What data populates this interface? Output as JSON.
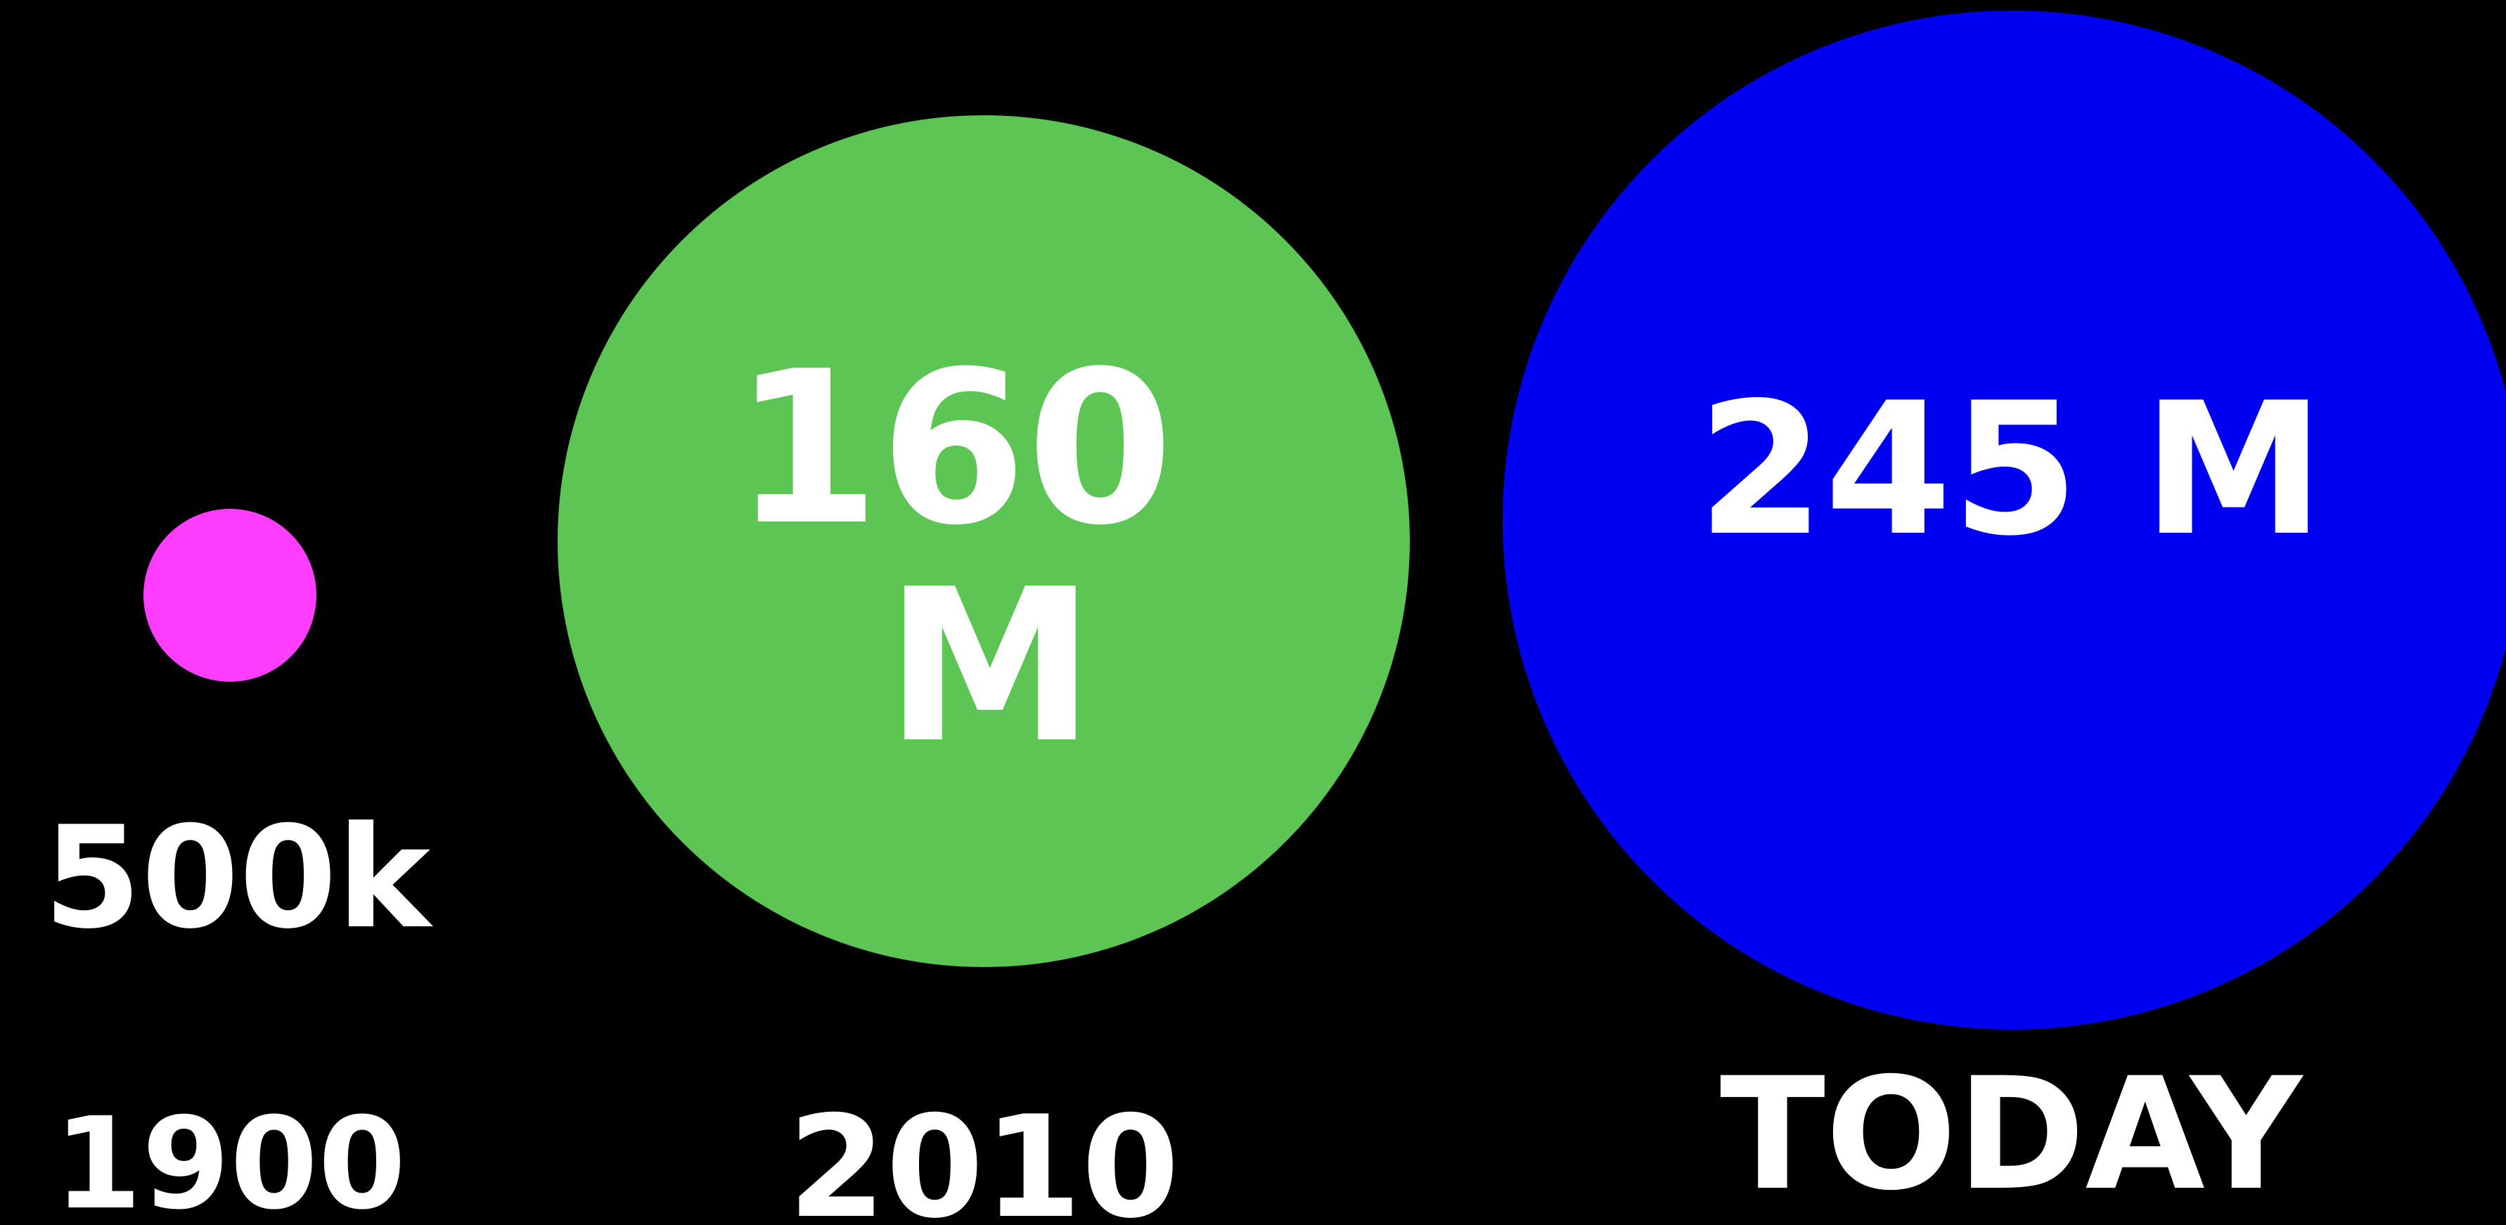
{
  "chart_data": {
    "type": "bubble",
    "categories": [
      "1900",
      "2010",
      "TODAY"
    ],
    "values": [
      500000,
      160000000,
      245000000
    ],
    "value_labels": [
      "500k",
      "160\nM",
      "245 M"
    ],
    "colors": [
      "#ff3dff",
      "#5cc554",
      "#0000f0"
    ],
    "background": "#000000",
    "title": "",
    "xlabel": "",
    "ylabel": ""
  }
}
